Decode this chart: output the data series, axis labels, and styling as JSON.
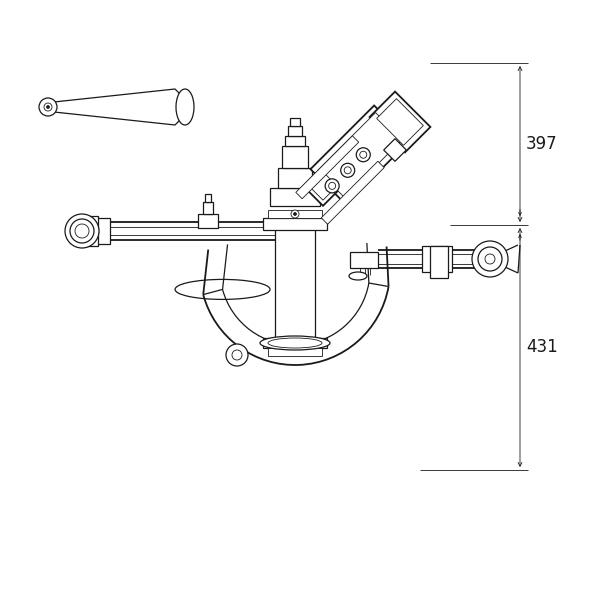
{
  "bg_color": "#ffffff",
  "lc": "#1a1a1a",
  "dim_397": "397",
  "dim_431": "431",
  "figsize": [
    6.0,
    6.0
  ],
  "dpi": 100
}
